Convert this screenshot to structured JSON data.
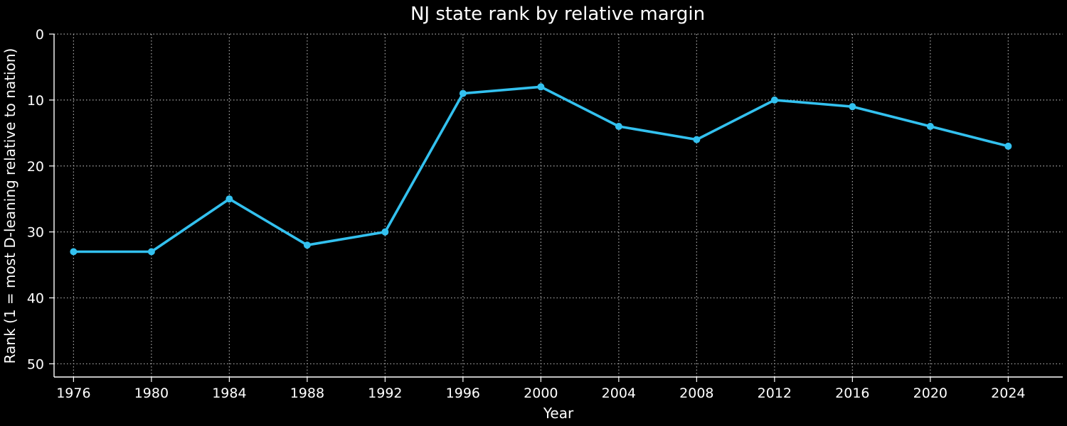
{
  "chart_data": {
    "type": "line",
    "title": "NJ state rank by relative margin",
    "xlabel": "Year",
    "ylabel": "Rank (1 = most D-leaning relative to nation)",
    "x": [
      1976,
      1980,
      1984,
      1988,
      1992,
      1996,
      2000,
      2004,
      2008,
      2012,
      2016,
      2020,
      2024
    ],
    "series": [
      {
        "values": [
          33,
          33,
          25,
          32,
          30,
          9,
          8,
          14,
          16,
          10,
          11,
          14,
          17
        ],
        "color": "#33c1ef"
      }
    ],
    "xticks": [
      "1976",
      "1980",
      "1984",
      "1988",
      "1992",
      "1996",
      "2000",
      "2004",
      "2008",
      "2012",
      "2016",
      "2020",
      "2024"
    ],
    "yticks": [
      "0",
      "10",
      "20",
      "30",
      "40",
      "50"
    ],
    "xlim": [
      1975,
      2026.8
    ],
    "ylim": [
      52,
      0
    ],
    "y_inverted": true,
    "grid": true,
    "grid_style": "dotted",
    "background": "#000000",
    "text_color": "#ffffff"
  }
}
